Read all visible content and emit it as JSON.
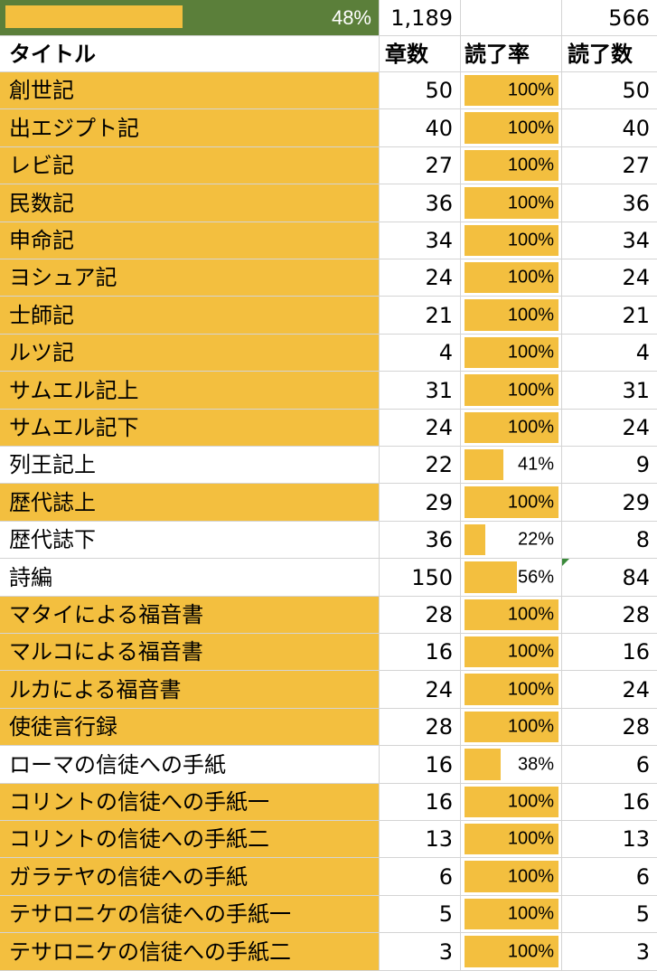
{
  "summary": {
    "overall_percent": "48%",
    "overall_fraction": 0.48,
    "total_chapters": "1,189",
    "total_read": "566"
  },
  "headers": {
    "title": "タイトル",
    "chapters": "章数",
    "read_rate": "読了率",
    "read_count": "読了数"
  },
  "colors": {
    "highlight": "#f3bf3f",
    "progress_green": "#5b7f3a"
  },
  "books": [
    {
      "title": "創世記",
      "chapters": "50",
      "rate": "100%",
      "fraction": 1.0,
      "read": "50",
      "complete": true
    },
    {
      "title": "出エジプト記",
      "chapters": "40",
      "rate": "100%",
      "fraction": 1.0,
      "read": "40",
      "complete": true
    },
    {
      "title": "レビ記",
      "chapters": "27",
      "rate": "100%",
      "fraction": 1.0,
      "read": "27",
      "complete": true
    },
    {
      "title": "民数記",
      "chapters": "36",
      "rate": "100%",
      "fraction": 1.0,
      "read": "36",
      "complete": true
    },
    {
      "title": "申命記",
      "chapters": "34",
      "rate": "100%",
      "fraction": 1.0,
      "read": "34",
      "complete": true
    },
    {
      "title": "ヨシュア記",
      "chapters": "24",
      "rate": "100%",
      "fraction": 1.0,
      "read": "24",
      "complete": true
    },
    {
      "title": "士師記",
      "chapters": "21",
      "rate": "100%",
      "fraction": 1.0,
      "read": "21",
      "complete": true
    },
    {
      "title": "ルツ記",
      "chapters": "4",
      "rate": "100%",
      "fraction": 1.0,
      "read": "4",
      "complete": true
    },
    {
      "title": "サムエル記上",
      "chapters": "31",
      "rate": "100%",
      "fraction": 1.0,
      "read": "31",
      "complete": true
    },
    {
      "title": "サムエル記下",
      "chapters": "24",
      "rate": "100%",
      "fraction": 1.0,
      "read": "24",
      "complete": true
    },
    {
      "title": "列王記上",
      "chapters": "22",
      "rate": "41%",
      "fraction": 0.41,
      "read": "9",
      "complete": false
    },
    {
      "title": "歴代誌上",
      "chapters": "29",
      "rate": "100%",
      "fraction": 1.0,
      "read": "29",
      "complete": true
    },
    {
      "title": "歴代誌下",
      "chapters": "36",
      "rate": "22%",
      "fraction": 0.22,
      "read": "8",
      "complete": false
    },
    {
      "title": "詩編",
      "chapters": "150",
      "rate": "56%",
      "fraction": 0.56,
      "read": "84",
      "complete": false,
      "note_marker": true
    },
    {
      "title": "マタイによる福音書",
      "chapters": "28",
      "rate": "100%",
      "fraction": 1.0,
      "read": "28",
      "complete": true
    },
    {
      "title": "マルコによる福音書",
      "chapters": "16",
      "rate": "100%",
      "fraction": 1.0,
      "read": "16",
      "complete": true
    },
    {
      "title": "ルカによる福音書",
      "chapters": "24",
      "rate": "100%",
      "fraction": 1.0,
      "read": "24",
      "complete": true
    },
    {
      "title": "使徒言行録",
      "chapters": "28",
      "rate": "100%",
      "fraction": 1.0,
      "read": "28",
      "complete": true
    },
    {
      "title": "ローマの信徒への手紙",
      "chapters": "16",
      "rate": "38%",
      "fraction": 0.38,
      "read": "6",
      "complete": false
    },
    {
      "title": "コリントの信徒への手紙一",
      "chapters": "16",
      "rate": "100%",
      "fraction": 1.0,
      "read": "16",
      "complete": true
    },
    {
      "title": "コリントの信徒への手紙二",
      "chapters": "13",
      "rate": "100%",
      "fraction": 1.0,
      "read": "13",
      "complete": true
    },
    {
      "title": "ガラテヤの信徒への手紙",
      "chapters": "6",
      "rate": "100%",
      "fraction": 1.0,
      "read": "6",
      "complete": true
    },
    {
      "title": "テサロニケの信徒への手紙一",
      "chapters": "5",
      "rate": "100%",
      "fraction": 1.0,
      "read": "5",
      "complete": true
    },
    {
      "title": "テサロニケの信徒への手紙二",
      "chapters": "3",
      "rate": "100%",
      "fraction": 1.0,
      "read": "3",
      "complete": true
    }
  ]
}
